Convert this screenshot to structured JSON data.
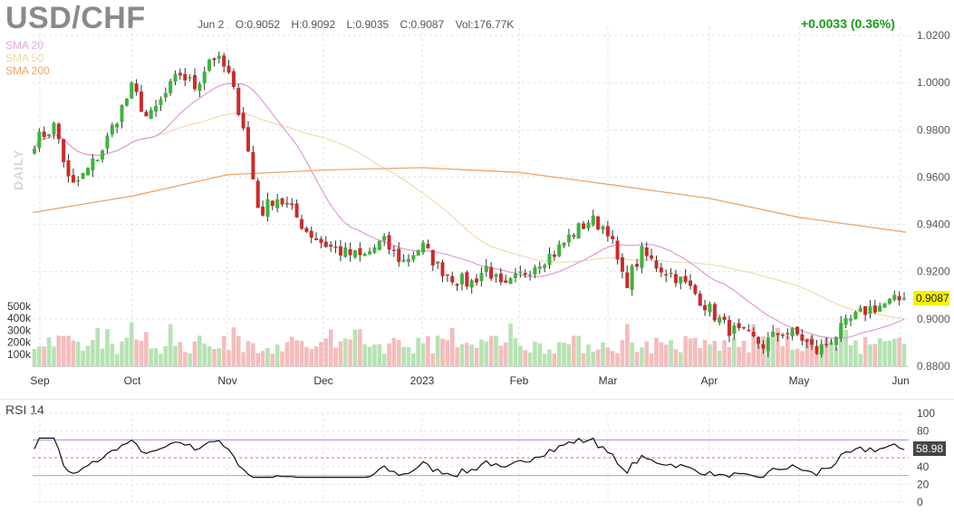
{
  "header": {
    "ticker": "USD/CHF",
    "date": "Jun 2",
    "open": "O:0.9052",
    "high": "H:0.9092",
    "low": "L:0.9035",
    "close": "C:0.9087",
    "volume": "Vol:176.77K",
    "change": "+0.0033 (0.36%)",
    "timeframe": "DAILY"
  },
  "indicators": {
    "sma20": "SMA 20",
    "sma50": "SMA 50",
    "sma200": "SMA 200",
    "rsi": "RSI 14"
  },
  "colors": {
    "up": "#3cb43c",
    "down": "#cc2a2a",
    "vol_up": "#b6e3b3",
    "vol_down": "#f6bcbc",
    "sma20": "#e09ad8",
    "sma50": "#f0dcaa",
    "sma200": "#f0a468",
    "rsi_line": "#111111",
    "rsi_upper": "#c79ad9",
    "rsi_lower": "#8ec3d9",
    "rsi_mid": "#e06a6a",
    "last_price_bg": "#f4f400"
  },
  "chart_data": [
    {
      "type": "candlestick",
      "title": "USD/CHF",
      "x_ticks": [
        "Sep",
        "Oct",
        "Nov",
        "Dec",
        "2023",
        "Feb",
        "Mar",
        "Apr",
        "May",
        "Jun"
      ],
      "y_ticks": [
        "1.0200",
        "1.0000",
        "0.9800",
        "0.9600",
        "0.9400",
        "0.9200",
        "0.9000",
        "0.8800"
      ],
      "ylim": [
        0.88,
        1.02
      ],
      "last_price": "0.9087",
      "grid": true,
      "close_anchors": [
        [
          "Sep",
          0.975
        ],
        [
          "",
          0.982
        ],
        [
          "",
          0.955
        ],
        [
          "",
          0.962
        ],
        [
          "",
          0.971
        ],
        [
          "",
          0.985
        ],
        [
          "Oct",
          0.998
        ],
        [
          "",
          0.984
        ],
        [
          "",
          0.994
        ],
        [
          "",
          1.004
        ],
        [
          "",
          0.998
        ],
        [
          "",
          1.012
        ],
        [
          "Nov",
          1.005
        ],
        [
          "",
          0.982
        ],
        [
          "",
          0.944
        ],
        [
          "",
          0.952
        ],
        [
          "",
          0.946
        ],
        [
          "",
          0.937
        ],
        [
          "Dec",
          0.932
        ],
        [
          "",
          0.928
        ],
        [
          "",
          0.926
        ],
        [
          "",
          0.933
        ],
        [
          "",
          0.924
        ],
        [
          "2023",
          0.931
        ],
        [
          "",
          0.922
        ],
        [
          "",
          0.917
        ],
        [
          "",
          0.915
        ],
        [
          "",
          0.922
        ],
        [
          "",
          0.912
        ],
        [
          "Feb",
          0.918
        ],
        [
          "",
          0.924
        ],
        [
          "",
          0.928
        ],
        [
          "",
          0.936
        ],
        [
          "",
          0.942
        ],
        [
          "Mar",
          0.938
        ],
        [
          "",
          0.914
        ],
        [
          "",
          0.928
        ],
        [
          "",
          0.922
        ],
        [
          "",
          0.918
        ],
        [
          "",
          0.912
        ],
        [
          "Apr",
          0.904
        ],
        [
          "",
          0.896
        ],
        [
          "",
          0.893
        ],
        [
          "",
          0.889
        ],
        [
          "",
          0.895
        ],
        [
          "May",
          0.893
        ],
        [
          "",
          0.886
        ],
        [
          "",
          0.892
        ],
        [
          "",
          0.899
        ],
        [
          "",
          0.904
        ],
        [
          "",
          0.906
        ],
        [
          "Jun",
          0.9087
        ]
      ],
      "sma200_anchors": [
        [
          "Sep",
          0.945
        ],
        [
          "Oct",
          0.952
        ],
        [
          "Nov",
          0.961
        ],
        [
          "Dec",
          0.963
        ],
        [
          "2023",
          0.964
        ],
        [
          "Feb",
          0.962
        ],
        [
          "Mar",
          0.957
        ],
        [
          "Apr",
          0.951
        ],
        [
          "May",
          0.943
        ],
        [
          "Jun",
          0.9367
        ]
      ]
    },
    {
      "type": "bar",
      "title": "Volume",
      "y_ticks": [
        "500k",
        "400k",
        "300k",
        "200k",
        "100k"
      ],
      "ylim": [
        0,
        500
      ]
    },
    {
      "type": "line",
      "title": "RSI 14",
      "y_ticks": [
        "100",
        "80",
        "60",
        "40",
        "20",
        "0"
      ],
      "ylim": [
        0,
        100
      ],
      "upper_band": 70,
      "lower_band": 30,
      "mid": 50,
      "last_value": "58.98"
    }
  ]
}
